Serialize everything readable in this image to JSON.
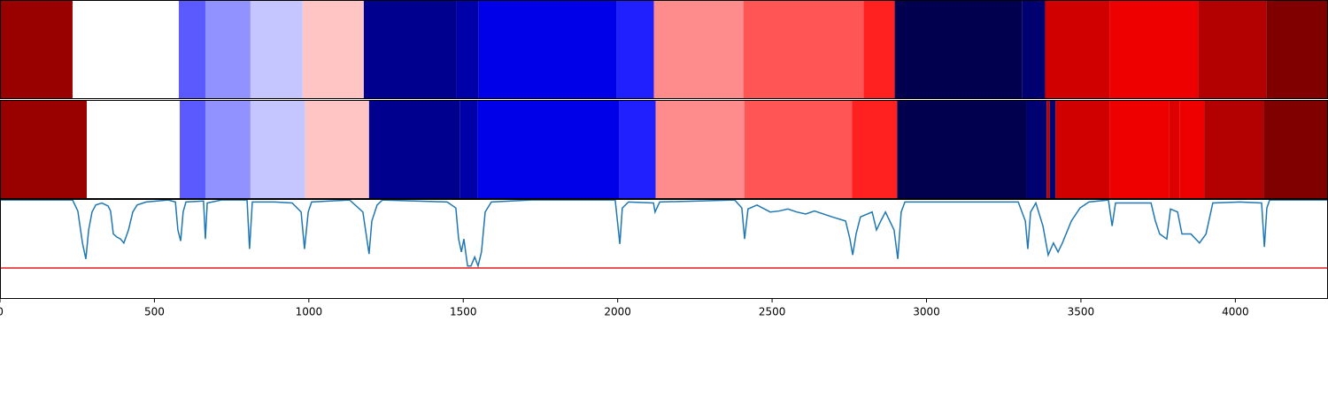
{
  "chart_data": {
    "type": "segments",
    "xlim": [
      0,
      4300
    ],
    "xticks": [
      0,
      500,
      1000,
      1500,
      2000,
      2500,
      3000,
      3500,
      4000
    ],
    "rows": [
      {
        "segments": [
          {
            "start": 0,
            "end": 235,
            "color": "#990000"
          },
          {
            "start": 235,
            "end": 579,
            "color": "#ffffff"
          },
          {
            "start": 579,
            "end": 665,
            "color": "#5a5aff"
          },
          {
            "start": 665,
            "end": 811,
            "color": "#9191ff"
          },
          {
            "start": 811,
            "end": 980,
            "color": "#c5c5ff"
          },
          {
            "start": 980,
            "end": 1178,
            "color": "#ffc5c5"
          },
          {
            "start": 1178,
            "end": 1478,
            "color": "#00008f"
          },
          {
            "start": 1478,
            "end": 1550,
            "color": "#0000a8"
          },
          {
            "start": 1550,
            "end": 1997,
            "color": "#0000e8"
          },
          {
            "start": 1997,
            "end": 2117,
            "color": "#2020ff"
          },
          {
            "start": 2117,
            "end": 2407,
            "color": "#ff8c8c"
          },
          {
            "start": 2407,
            "end": 2796,
            "color": "#ff5555"
          },
          {
            "start": 2796,
            "end": 2897,
            "color": "#ff2020"
          },
          {
            "start": 2897,
            "end": 3309,
            "color": "#00004f"
          },
          {
            "start": 3309,
            "end": 3384,
            "color": "#000070"
          },
          {
            "start": 3384,
            "end": 3593,
            "color": "#d10000"
          },
          {
            "start": 3593,
            "end": 3879,
            "color": "#ee0000"
          },
          {
            "start": 3879,
            "end": 4100,
            "color": "#b30000"
          },
          {
            "start": 4100,
            "end": 4300,
            "color": "#800000"
          }
        ]
      },
      {
        "segments": [
          {
            "start": 0,
            "end": 281,
            "color": "#990000"
          },
          {
            "start": 281,
            "end": 582,
            "color": "#ffffff"
          },
          {
            "start": 582,
            "end": 665,
            "color": "#5a5aff"
          },
          {
            "start": 665,
            "end": 811,
            "color": "#9191ff"
          },
          {
            "start": 811,
            "end": 988,
            "color": "#c5c5ff"
          },
          {
            "start": 988,
            "end": 1195,
            "color": "#ffc5c5"
          },
          {
            "start": 1195,
            "end": 1490,
            "color": "#00008f"
          },
          {
            "start": 1490,
            "end": 1547,
            "color": "#0000a8"
          },
          {
            "start": 1547,
            "end": 2006,
            "color": "#0000e8"
          },
          {
            "start": 2006,
            "end": 2123,
            "color": "#2020ff"
          },
          {
            "start": 2123,
            "end": 2410,
            "color": "#ff8c8c"
          },
          {
            "start": 2410,
            "end": 2759,
            "color": "#ff5555"
          },
          {
            "start": 2759,
            "end": 2905,
            "color": "#ff2020"
          },
          {
            "start": 2905,
            "end": 3324,
            "color": "#00004f"
          },
          {
            "start": 3324,
            "end": 3389,
            "color": "#000070"
          },
          {
            "start": 3389,
            "end": 3399,
            "color": "#bb0000"
          },
          {
            "start": 3399,
            "end": 3418,
            "color": "#000070"
          },
          {
            "start": 3418,
            "end": 3593,
            "color": "#d10000"
          },
          {
            "start": 3593,
            "end": 3785,
            "color": "#ee0000"
          },
          {
            "start": 3785,
            "end": 3819,
            "color": "#dd0000"
          },
          {
            "start": 3819,
            "end": 3899,
            "color": "#ee0000"
          },
          {
            "start": 3899,
            "end": 4091,
            "color": "#b30000"
          },
          {
            "start": 4091,
            "end": 4300,
            "color": "#800000"
          }
        ]
      }
    ],
    "line": {
      "color": "#1f77b4",
      "ylim": [
        0,
        1
      ],
      "threshold": 0.31,
      "threshold_color": "#e31a1c",
      "x": [
        0,
        235,
        252,
        267,
        278,
        287,
        298,
        310,
        330,
        350,
        358,
        367,
        378,
        390,
        401,
        416,
        430,
        444,
        473,
        545,
        568,
        576,
        585,
        593,
        602,
        659,
        665,
        671,
        717,
        800,
        808,
        817,
        889,
        946,
        975,
        986,
        998,
        1009,
        1132,
        1175,
        1195,
        1204,
        1221,
        1238,
        1448,
        1476,
        1485,
        1494,
        1502,
        1514,
        1525,
        1537,
        1548,
        1559,
        1571,
        1591,
        1720,
        1992,
        2007,
        2015,
        2035,
        2116,
        2121,
        2136,
        2379,
        2402,
        2411,
        2422,
        2451,
        2494,
        2523,
        2551,
        2580,
        2609,
        2637,
        2695,
        2738,
        2752,
        2761,
        2772,
        2786,
        2824,
        2838,
        2852,
        2867,
        2895,
        2907,
        2918,
        2930,
        3297,
        3320,
        3328,
        3337,
        3354,
        3377,
        3394,
        3411,
        3426,
        3440,
        3469,
        3497,
        3526,
        3589,
        3601,
        3612,
        3727,
        3741,
        3755,
        3778,
        3790,
        3813,
        3827,
        3856,
        3884,
        3905,
        3927,
        4013,
        4085,
        4094,
        4102,
        4111,
        4300
      ],
      "values": [
        0.99,
        0.99,
        0.88,
        0.56,
        0.4,
        0.69,
        0.87,
        0.94,
        0.96,
        0.93,
        0.88,
        0.65,
        0.62,
        0.6,
        0.56,
        0.69,
        0.87,
        0.94,
        0.97,
        0.99,
        0.97,
        0.69,
        0.58,
        0.87,
        0.97,
        0.98,
        0.6,
        0.96,
        0.99,
        0.99,
        0.5,
        0.97,
        0.97,
        0.96,
        0.87,
        0.5,
        0.87,
        0.97,
        0.99,
        0.87,
        0.45,
        0.78,
        0.94,
        0.99,
        0.97,
        0.91,
        0.6,
        0.47,
        0.6,
        0.33,
        0.33,
        0.42,
        0.33,
        0.47,
        0.87,
        0.97,
        0.99,
        0.99,
        0.55,
        0.91,
        0.97,
        0.96,
        0.87,
        0.97,
        0.99,
        0.91,
        0.6,
        0.9,
        0.94,
        0.87,
        0.88,
        0.9,
        0.87,
        0.85,
        0.88,
        0.82,
        0.78,
        0.6,
        0.44,
        0.65,
        0.82,
        0.87,
        0.69,
        0.78,
        0.87,
        0.69,
        0.4,
        0.87,
        0.97,
        0.97,
        0.78,
        0.5,
        0.87,
        0.96,
        0.73,
        0.44,
        0.56,
        0.47,
        0.56,
        0.78,
        0.91,
        0.97,
        0.99,
        0.73,
        0.96,
        0.96,
        0.78,
        0.65,
        0.6,
        0.9,
        0.87,
        0.65,
        0.65,
        0.56,
        0.65,
        0.96,
        0.97,
        0.96,
        0.52,
        0.91,
        0.99,
        0.99
      ]
    }
  }
}
